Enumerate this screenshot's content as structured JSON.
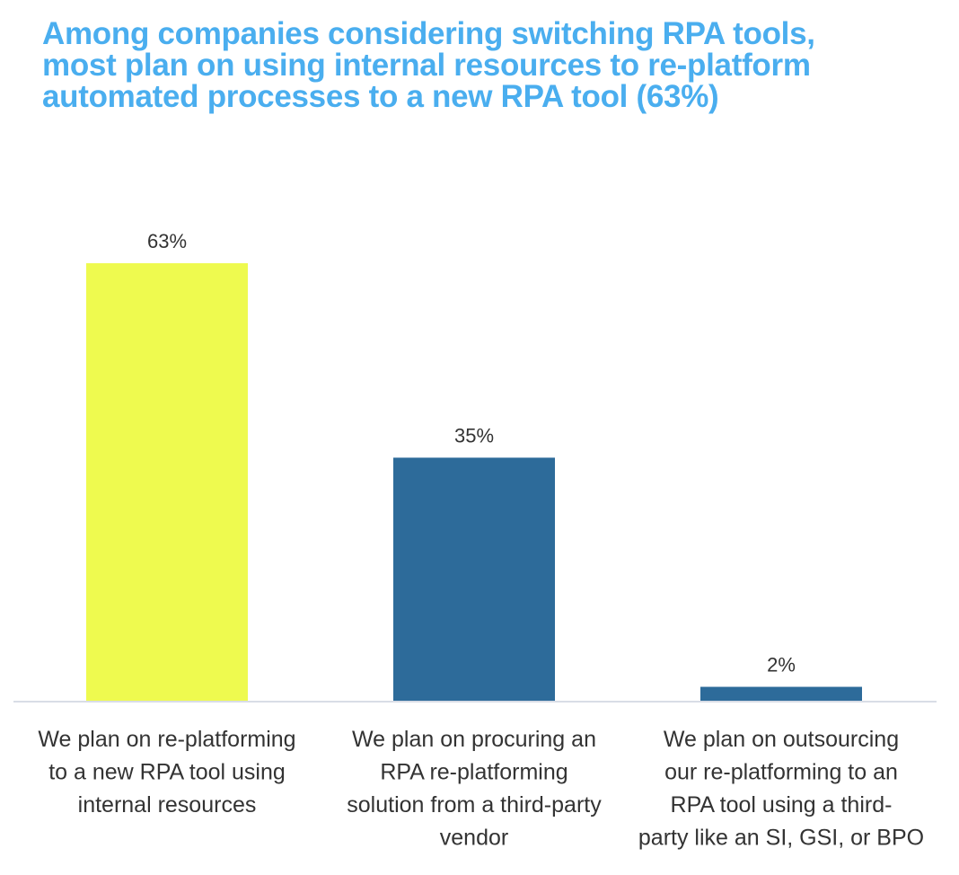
{
  "chart_data": {
    "type": "bar",
    "title_lines": [
      "Among companies considering switching RPA tools,",
      "most plan on using internal resources to re-platform",
      "automated processes to a new RPA tool (63%)"
    ],
    "categories": [
      [
        "We plan on re-platforming",
        "to a new RPA tool using",
        "internal resources"
      ],
      [
        "We plan on procuring an",
        "RPA re-platforming",
        "solution from a third-party",
        "vendor"
      ],
      [
        "We plan on outsourcing",
        "our re-platforming to an",
        "RPA tool using a third-",
        "party like an SI, GSI, or BPO"
      ]
    ],
    "values": [
      63,
      35,
      2
    ],
    "data_labels": [
      "63%",
      "35%",
      "2%"
    ],
    "bar_colors": [
      "#eefa4f",
      "#2d6b9a",
      "#2d6b9a"
    ],
    "title_color": "#4aaeef",
    "axis_color": "#d9dde6",
    "unit": "%",
    "grid": false,
    "legend": "none"
  }
}
